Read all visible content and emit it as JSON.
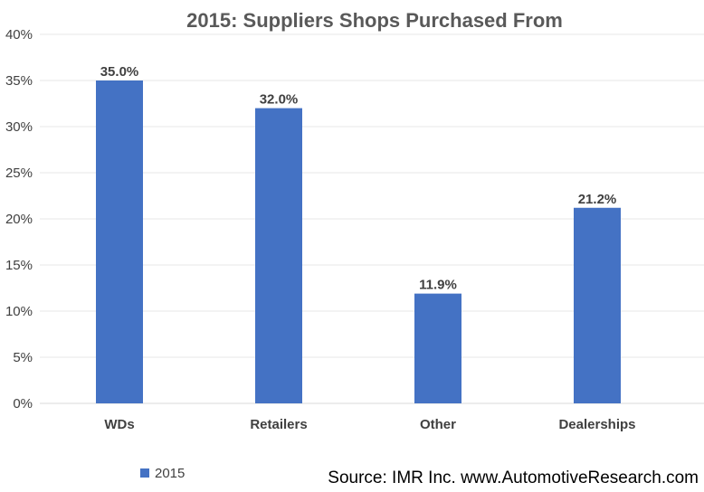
{
  "chart_data": {
    "type": "bar",
    "title": "2015: Suppliers Shops Purchased From",
    "categories": [
      "WDs",
      "Retailers",
      "Other",
      "Dealerships"
    ],
    "series": [
      {
        "name": "2015",
        "values": [
          35.0,
          32.0,
          11.9,
          21.2
        ],
        "color": "#4472C4"
      }
    ],
    "data_labels": [
      "35.0%",
      "32.0%",
      "11.9%",
      "21.2%"
    ],
    "ylim": [
      0,
      40
    ],
    "yticks": [
      0,
      5,
      10,
      15,
      20,
      25,
      30,
      35,
      40
    ],
    "ytick_labels": [
      "0%",
      "5%",
      "10%",
      "15%",
      "20%",
      "25%",
      "30%",
      "35%",
      "40%"
    ],
    "grid": true,
    "legend": "bottom-left",
    "source": "Source: IMR Inc. www.AutomotiveResearch.com"
  }
}
